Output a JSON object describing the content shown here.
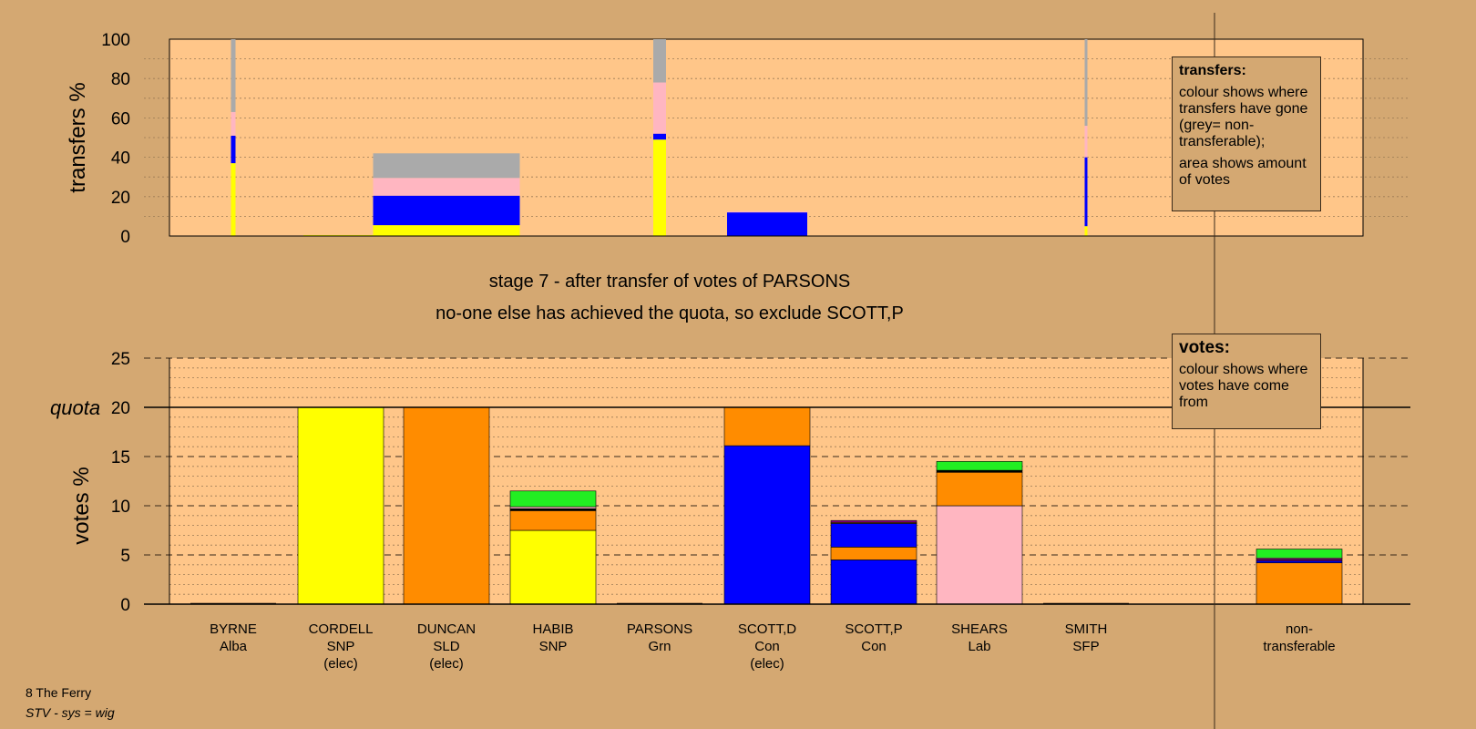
{
  "chart_data": [
    {
      "type": "bar",
      "name": "transfers",
      "ylabel": "transfers %",
      "ylim": [
        0,
        100
      ],
      "yticks": [
        0,
        20,
        40,
        60,
        80,
        100
      ],
      "note": "bar width shows amount of votes transferred",
      "candidates": [
        "BYRNE",
        "CORDELL",
        "DUNCAN",
        "HABIB",
        "PARSONS",
        "SCOTT,D",
        "SCOTT,P",
        "SHEARS",
        "SMITH",
        "non-transferable"
      ],
      "series": [
        {
          "color": "#ffff00",
          "values": [
            37,
            0.5,
            5.5,
            0,
            49,
            0,
            0,
            0,
            5,
            0
          ]
        },
        {
          "color": "#0000ff",
          "values": [
            14,
            0,
            15,
            0,
            3,
            12,
            0,
            0,
            35,
            0
          ]
        },
        {
          "color": "#ffb6c1",
          "values": [
            12,
            0,
            9,
            0,
            26,
            0.5,
            0,
            0,
            16,
            0
          ]
        },
        {
          "color": "#aaaaaa",
          "values": [
            37,
            0,
            12.5,
            0,
            22,
            0,
            0,
            0,
            44,
            0
          ]
        }
      ]
    },
    {
      "type": "bar",
      "name": "votes",
      "ylabel": "votes %",
      "ylim": [
        0,
        25
      ],
      "yticks": [
        0,
        5,
        10,
        15,
        20,
        25
      ],
      "quota": 20,
      "quota_label": "quota",
      "categories": [
        {
          "name": "BYRNE",
          "party": "Alba",
          "status": ""
        },
        {
          "name": "CORDELL",
          "party": "SNP",
          "status": "(elec)"
        },
        {
          "name": "DUNCAN",
          "party": "SLD",
          "status": "(elec)"
        },
        {
          "name": "HABIB",
          "party": "SNP",
          "status": ""
        },
        {
          "name": "PARSONS",
          "party": "Grn",
          "status": ""
        },
        {
          "name": "SCOTT,D",
          "party": "Con",
          "status": "(elec)"
        },
        {
          "name": "SCOTT,P",
          "party": "Con",
          "status": ""
        },
        {
          "name": "SHEARS",
          "party": "Lab",
          "status": ""
        },
        {
          "name": "SMITH",
          "party": "SFP",
          "status": ""
        },
        {
          "name": "non-",
          "party": "transferable",
          "status": ""
        }
      ],
      "stacks": [
        [],
        [
          {
            "color": "#ffff00",
            "value": 20
          }
        ],
        [
          {
            "color": "#ff8c00",
            "value": 20
          }
        ],
        [
          {
            "color": "#ffff00",
            "value": 7.5
          },
          {
            "color": "#ff8c00",
            "value": 2
          },
          {
            "color": "#000000",
            "value": 0.2
          },
          {
            "color": "#ffb6c1",
            "value": 0.2
          },
          {
            "color": "#22ee22",
            "value": 1.6
          }
        ],
        [],
        [
          {
            "color": "#0000ff",
            "value": 16.1
          },
          {
            "color": "#ff8c00",
            "value": 3.9
          }
        ],
        [
          {
            "color": "#0000ff",
            "value": 4.5
          },
          {
            "color": "#ff8c00",
            "value": 1.3
          },
          {
            "color": "#0000ff",
            "value": 2.4
          },
          {
            "color": "#ff8c00",
            "value": 0.1
          },
          {
            "color": "#800080",
            "value": 0.2
          }
        ],
        [
          {
            "color": "#ffb6c1",
            "value": 10
          },
          {
            "color": "#ff8c00",
            "value": 3.4
          },
          {
            "color": "#000000",
            "value": 0.2
          },
          {
            "color": "#22ee22",
            "value": 0.9
          }
        ],
        [],
        [
          {
            "color": "#ff8c00",
            "value": 4.2
          },
          {
            "color": "#0000ff",
            "value": 0.2
          },
          {
            "color": "#800080",
            "value": 0.2
          },
          {
            "color": "#ffb6c1",
            "value": 0.1
          },
          {
            "color": "#22ee22",
            "value": 0.9
          }
        ]
      ]
    }
  ],
  "headings": {
    "stage": "stage 7 - after transfer of votes of PARSONS",
    "action": "no-one else has achieved the quota, so exclude SCOTT,P"
  },
  "legend_transfers": {
    "title": "transfers:",
    "line1": "colour shows where transfers have gone (grey= non-transferable);",
    "line2": "area shows amount of votes"
  },
  "legend_votes": {
    "title": "votes:",
    "line1": "colour shows where votes have come from"
  },
  "footer": {
    "ward": "8 The Ferry",
    "system": "STV - sys = wig"
  },
  "colors": {
    "background": "#d4a872",
    "plot_background": "#ffc689",
    "axis": "#000000"
  }
}
